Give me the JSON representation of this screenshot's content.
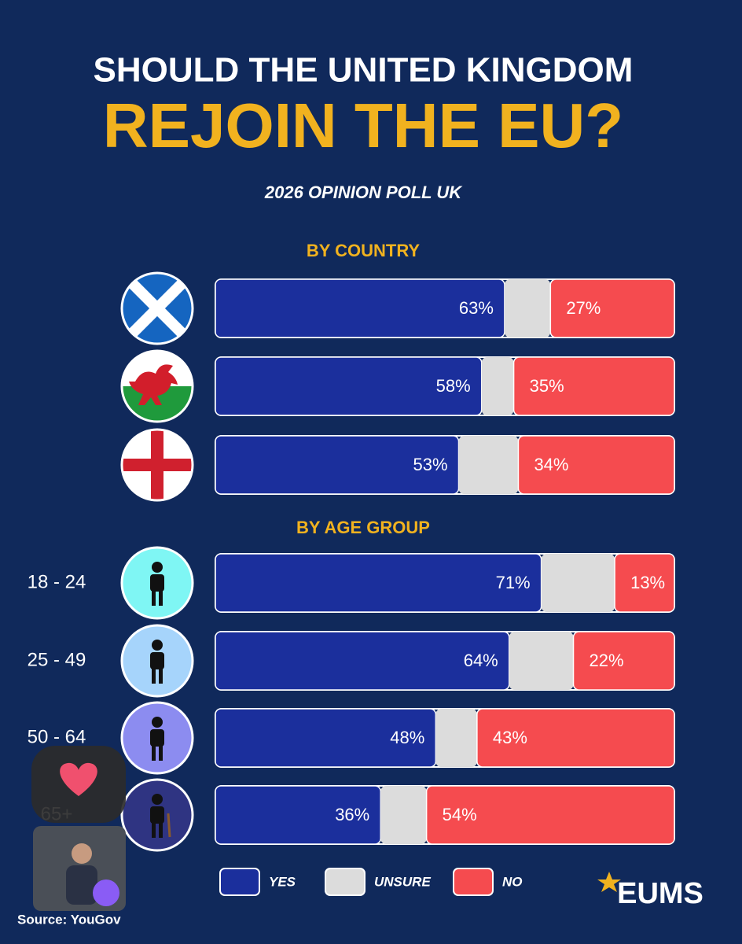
{
  "chart_data": {
    "type": "bar",
    "orientation": "horizontal",
    "stacked": true,
    "title": "SHOULD THE UNITED KINGDOM",
    "title_highlight": "REJOIN THE EU?",
    "subtitle": "2026 OPINION POLL UK",
    "group_labels": [
      "BY COUNTRY",
      null,
      null,
      "BY AGE GROUP",
      null,
      null,
      null
    ],
    "categories": [
      null,
      null,
      null,
      "18 - 24",
      "25 - 49",
      "50 - 64",
      "65+"
    ],
    "xlim": [
      0,
      100
    ],
    "series": [
      {
        "name": "YES",
        "color": "#1b2f9c",
        "values": [
          63,
          58,
          53,
          71,
          64,
          48,
          36
        ],
        "value_labels": [
          "63%",
          "58%",
          "53%",
          "71%",
          "64%",
          "48%",
          "36%"
        ]
      },
      {
        "name": "UNSURE",
        "color": "#dcdcdc",
        "values": [
          10,
          7,
          13,
          16,
          14,
          9,
          10
        ]
      },
      {
        "name": "NO",
        "color": "#f54b4f",
        "values": [
          27,
          35,
          34,
          13,
          22,
          43,
          54
        ],
        "value_labels": [
          "27%",
          "35%",
          "34%",
          "13%",
          "22%",
          "43%",
          "54%"
        ]
      }
    ],
    "source": "Source: YouGov",
    "logo": "EUMS"
  }
}
